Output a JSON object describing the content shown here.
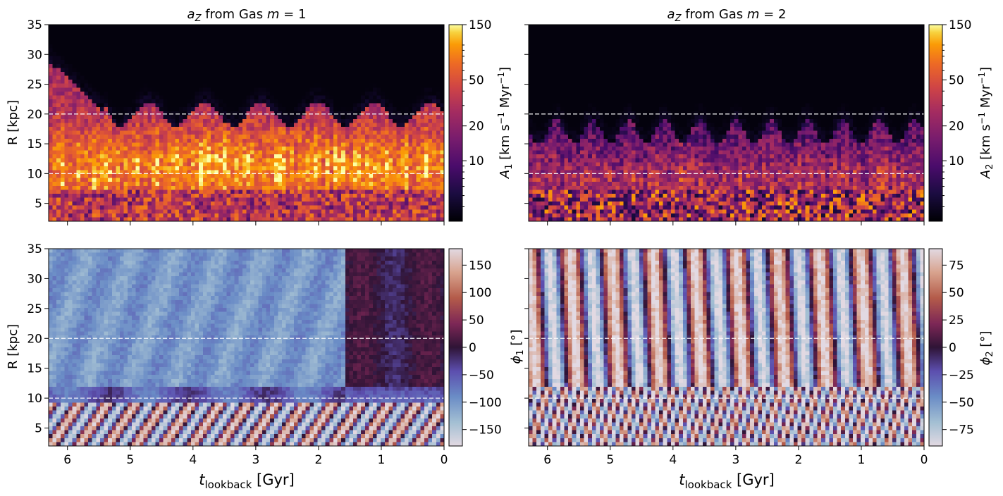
{
  "chart_data": [
    {
      "type": "heatmap",
      "title": "a_Z from Gas m = 1",
      "title_parts": {
        "base": "a",
        "sub": "Z",
        "middle": " from Gas ",
        "var": "m",
        "eq": " = 1"
      },
      "xlabel": "",
      "ylabel": "R [kpc]",
      "xlim": [
        6.3,
        0
      ],
      "ylim": [
        2,
        35
      ],
      "xticks": [
        6,
        5,
        4,
        3,
        2,
        1,
        0
      ],
      "xtick_labels": [],
      "yticks": [
        5,
        10,
        15,
        20,
        25,
        30,
        35
      ],
      "ytick_labels": [
        "5",
        "10",
        "15",
        "20",
        "25",
        "30",
        "35"
      ],
      "reference_lines": [
        10,
        20
      ],
      "colormap": "inferno",
      "colorbar": {
        "scale": "log",
        "range": [
          3,
          150
        ],
        "ticks": [
          10,
          20,
          50,
          150
        ],
        "tick_labels": [
          "10",
          "20",
          "50",
          "150"
        ],
        "label": "A_1 [km s^-1 Myr^-1]",
        "label_parts": {
          "a": "A",
          "sub": "1",
          "unit1": " [km s",
          "exp1": "−1",
          "unit2": " Myr",
          "exp2": "−1",
          "close": "]"
        }
      },
      "description": "Amplitude high (~30-80) between R≈5-15 kpc, falling to ~3 above R≈20-25 kpc"
    },
    {
      "type": "heatmap",
      "title": "a_Z from Gas m = 2",
      "title_parts": {
        "base": "a",
        "sub": "Z",
        "middle": " from Gas ",
        "var": "m",
        "eq": " = 2"
      },
      "xlabel": "",
      "ylabel": "",
      "xlim": [
        6.3,
        0
      ],
      "ylim": [
        2,
        35
      ],
      "xticks": [
        6,
        5,
        4,
        3,
        2,
        1,
        0
      ],
      "xtick_labels": [],
      "yticks": [
        5,
        10,
        15,
        20,
        25,
        30,
        35
      ],
      "ytick_labels": [],
      "reference_lines": [
        10,
        20
      ],
      "colormap": "inferno",
      "colorbar": {
        "scale": "log",
        "range": [
          3,
          150
        ],
        "ticks": [
          10,
          20,
          50,
          150
        ],
        "tick_labels": [
          "10",
          "20",
          "50",
          "150"
        ],
        "label": "A_2 [km s^-1 Myr^-1]",
        "label_parts": {
          "a": "A",
          "sub": "2",
          "unit1": " [km s",
          "exp1": "−1",
          "unit2": " Myr",
          "exp2": "−1",
          "close": "]"
        }
      },
      "description": "Amplitude moderate (~10-30) below R≈18 kpc with vertical streaks, ~3 above"
    },
    {
      "type": "heatmap",
      "title": "",
      "xlabel": "t_lookback [Gyr]",
      "xlabel_parts": {
        "t": "t",
        "sub": "lookback",
        "unit": " [Gyr]"
      },
      "ylabel": "R [kpc]",
      "xlim": [
        6.3,
        0
      ],
      "ylim": [
        2,
        35
      ],
      "xticks": [
        6,
        5,
        4,
        3,
        2,
        1,
        0
      ],
      "xtick_labels": [
        "6",
        "5",
        "4",
        "3",
        "2",
        "1",
        "0"
      ],
      "yticks": [
        5,
        10,
        15,
        20,
        25,
        30,
        35
      ],
      "ytick_labels": [
        "5",
        "10",
        "15",
        "20",
        "25",
        "30",
        "35"
      ],
      "reference_lines": [
        10,
        20
      ],
      "colormap": "twilight",
      "colorbar": {
        "scale": "linear",
        "range": [
          -180,
          180
        ],
        "ticks": [
          -150,
          -100,
          -50,
          0,
          50,
          100,
          150
        ],
        "tick_labels": [
          "−150",
          "−100",
          "−50",
          "0",
          "50",
          "100",
          "150"
        ],
        "label": "phi_1 [°]",
        "label_parts": {
          "sym": "ϕ",
          "sub": "1",
          "unit": " [°]"
        }
      },
      "description": "Phase near -100 at large R for t>1.5 Gyr, near 0 to +50 for t<1.5 Gyr; oscillating stripes below R≈8 kpc"
    },
    {
      "type": "heatmap",
      "title": "",
      "xlabel": "t_lookback [Gyr]",
      "xlabel_parts": {
        "t": "t",
        "sub": "lookback",
        "unit": " [Gyr]"
      },
      "ylabel": "",
      "xlim": [
        6.3,
        0
      ],
      "ylim": [
        2,
        35
      ],
      "xticks": [
        6,
        5,
        4,
        3,
        2,
        1,
        0
      ],
      "xtick_labels": [
        "6",
        "5",
        "4",
        "3",
        "2",
        "1",
        "0"
      ],
      "yticks": [
        5,
        10,
        15,
        20,
        25,
        30,
        35
      ],
      "ytick_labels": [],
      "reference_lines": [
        10,
        20
      ],
      "colormap": "twilight",
      "colorbar": {
        "scale": "linear",
        "range": [
          -90,
          90
        ],
        "ticks": [
          -75,
          -50,
          -25,
          0,
          25,
          50,
          75
        ],
        "tick_labels": [
          "−75",
          "−50",
          "−25",
          "0",
          "25",
          "50",
          "75"
        ],
        "label": "phi_2 [°]",
        "label_parts": {
          "sym": "ϕ",
          "sub": "2",
          "unit": " [°]"
        }
      },
      "description": "Phase pattern rotating rapidly in time, diagonal bands over all radii"
    }
  ],
  "shared_labels": {
    "middle_axis_label": "phi_1 [°]",
    "middle_axis_label_parts": {
      "sym": "ϕ",
      "sub": "1",
      "unit": " [°]"
    }
  }
}
